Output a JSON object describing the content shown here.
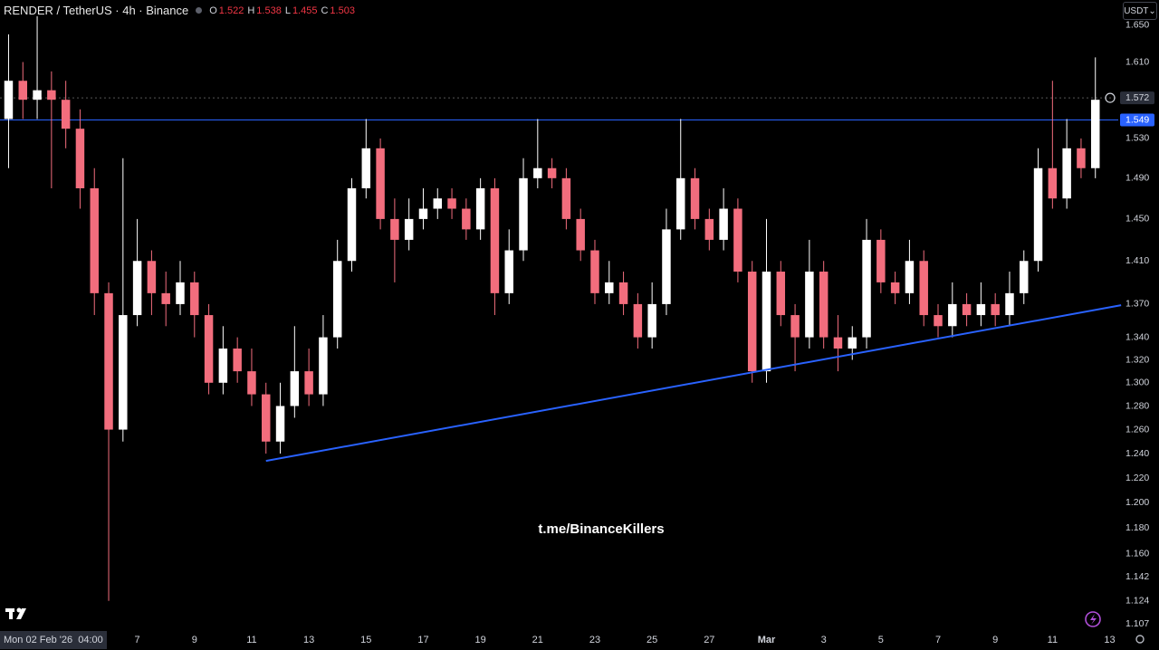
{
  "chart_data": {
    "type": "candlestick",
    "title": "RENDER / TetherUS · 4h · Binance",
    "ohlc_header": [
      {
        "label": "O",
        "value": 1.522
      },
      {
        "label": "H",
        "value": 1.538
      },
      {
        "label": "L",
        "value": 1.455
      },
      {
        "label": "C",
        "value": 1.503
      }
    ],
    "currency": "USDT",
    "start_label": "Mon 02 Feb '26  04:00",
    "watermark": "t.me/BinanceKillers",
    "log_scale": true,
    "up_color": "#ffffff",
    "down_color": "#f26d7d",
    "line_color": "#2962ff",
    "current_price": 1.572,
    "level": 1.549,
    "trendline": {
      "x": [
        11.5,
        41.4
      ],
      "y": [
        1.234,
        1.369
      ]
    },
    "x": [
      2.5,
      3,
      3.5,
      4,
      4.5,
      5,
      5.5,
      6,
      6.5,
      7,
      7.5,
      8,
      8.5,
      9,
      9.5,
      10,
      10.5,
      11,
      11.5,
      12,
      12.5,
      13,
      13.5,
      14,
      14.5,
      15,
      15.5,
      16,
      16.5,
      17,
      17.5,
      18,
      18.5,
      19,
      19.5,
      20,
      20.5,
      21,
      21.5,
      22,
      22.5,
      23,
      23.5,
      24,
      24.5,
      25,
      25.5,
      26,
      26.5,
      27,
      27.5,
      28,
      28.5,
      29,
      29.5,
      30,
      30.5,
      31,
      31.5,
      32,
      32.5,
      33,
      33.5,
      34,
      34.5,
      35,
      35.5,
      36,
      36.5,
      37,
      37.5,
      38,
      38.5,
      39,
      39.5,
      40,
      40.5
    ],
    "open": [
      1.55,
      1.59,
      1.57,
      1.58,
      1.57,
      1.54,
      1.48,
      1.38,
      1.26,
      1.36,
      1.41,
      1.38,
      1.37,
      1.39,
      1.36,
      1.3,
      1.33,
      1.31,
      1.29,
      1.25,
      1.28,
      1.31,
      1.29,
      1.34,
      1.41,
      1.48,
      1.52,
      1.45,
      1.43,
      1.45,
      1.46,
      1.47,
      1.46,
      1.44,
      1.48,
      1.38,
      1.42,
      1.49,
      1.5,
      1.49,
      1.45,
      1.42,
      1.38,
      1.39,
      1.37,
      1.34,
      1.37,
      1.44,
      1.49,
      1.45,
      1.43,
      1.46,
      1.4,
      1.31,
      1.4,
      1.36,
      1.34,
      1.4,
      1.34,
      1.33,
      1.34,
      1.43,
      1.39,
      1.38,
      1.41,
      1.36,
      1.35,
      1.37,
      1.36,
      1.37,
      1.36,
      1.38,
      1.41,
      1.5,
      1.47,
      1.52,
      1.5
    ],
    "high": [
      1.64,
      1.61,
      1.66,
      1.6,
      1.59,
      1.56,
      1.5,
      1.39,
      1.51,
      1.45,
      1.42,
      1.4,
      1.41,
      1.4,
      1.37,
      1.35,
      1.34,
      1.33,
      1.3,
      1.3,
      1.35,
      1.33,
      1.36,
      1.43,
      1.49,
      1.55,
      1.53,
      1.47,
      1.47,
      1.48,
      1.48,
      1.48,
      1.47,
      1.49,
      1.49,
      1.44,
      1.51,
      1.55,
      1.51,
      1.5,
      1.46,
      1.43,
      1.41,
      1.4,
      1.38,
      1.39,
      1.46,
      1.55,
      1.5,
      1.46,
      1.48,
      1.47,
      1.41,
      1.45,
      1.41,
      1.37,
      1.43,
      1.41,
      1.36,
      1.35,
      1.45,
      1.44,
      1.4,
      1.43,
      1.42,
      1.37,
      1.39,
      1.38,
      1.39,
      1.38,
      1.4,
      1.42,
      1.52,
      1.59,
      1.55,
      1.53,
      1.615
    ],
    "low": [
      1.5,
      1.55,
      1.55,
      1.48,
      1.52,
      1.46,
      1.36,
      1.124,
      1.25,
      1.35,
      1.36,
      1.35,
      1.36,
      1.34,
      1.29,
      1.29,
      1.3,
      1.28,
      1.24,
      1.24,
      1.27,
      1.28,
      1.28,
      1.33,
      1.4,
      1.47,
      1.44,
      1.39,
      1.42,
      1.44,
      1.45,
      1.45,
      1.43,
      1.43,
      1.36,
      1.37,
      1.41,
      1.48,
      1.48,
      1.44,
      1.41,
      1.37,
      1.37,
      1.36,
      1.33,
      1.33,
      1.36,
      1.43,
      1.44,
      1.42,
      1.42,
      1.39,
      1.3,
      1.3,
      1.35,
      1.31,
      1.33,
      1.33,
      1.31,
      1.32,
      1.33,
      1.38,
      1.37,
      1.37,
      1.35,
      1.34,
      1.34,
      1.35,
      1.35,
      1.35,
      1.35,
      1.37,
      1.4,
      1.46,
      1.46,
      1.49,
      1.49
    ],
    "close": [
      1.59,
      1.57,
      1.58,
      1.57,
      1.54,
      1.48,
      1.38,
      1.26,
      1.36,
      1.41,
      1.38,
      1.37,
      1.39,
      1.36,
      1.3,
      1.33,
      1.31,
      1.29,
      1.25,
      1.28,
      1.31,
      1.29,
      1.34,
      1.41,
      1.48,
      1.52,
      1.45,
      1.43,
      1.45,
      1.46,
      1.47,
      1.46,
      1.44,
      1.48,
      1.38,
      1.42,
      1.49,
      1.5,
      1.49,
      1.45,
      1.42,
      1.38,
      1.39,
      1.37,
      1.34,
      1.37,
      1.44,
      1.49,
      1.45,
      1.43,
      1.46,
      1.4,
      1.31,
      1.4,
      1.36,
      1.34,
      1.4,
      1.34,
      1.33,
      1.34,
      1.43,
      1.39,
      1.38,
      1.41,
      1.36,
      1.35,
      1.37,
      1.36,
      1.37,
      1.36,
      1.38,
      1.41,
      1.5,
      1.47,
      1.52,
      1.5,
      1.57
    ],
    "xlim": [
      2.2,
      41.3
    ],
    "xticks": [
      7,
      9,
      11,
      13,
      15,
      17,
      19,
      21,
      23,
      25,
      27,
      {
        "value": 29,
        "label": "Mar"
      },
      {
        "value": 31,
        "label": "3"
      },
      {
        "value": 33,
        "label": "5"
      },
      {
        "value": 35,
        "label": "7"
      },
      {
        "value": 37,
        "label": "9"
      },
      {
        "value": 39,
        "label": "11"
      },
      {
        "value": 41,
        "label": "13"
      }
    ],
    "ylim": [
      1.103,
      1.678
    ],
    "yticks": [
      {
        "value": 1.65,
        "label": "1.650"
      },
      {
        "value": 1.61,
        "label": "1.610"
      },
      {
        "value": 1.53,
        "label": "1.530"
      },
      {
        "value": 1.49,
        "label": "1.490"
      },
      {
        "value": 1.45,
        "label": "1.450"
      },
      {
        "value": 1.41,
        "label": "1.410"
      },
      {
        "value": 1.37,
        "label": "1.370"
      },
      {
        "value": 1.34,
        "label": "1.340"
      },
      {
        "value": 1.32,
        "label": "1.320"
      },
      {
        "value": 1.3,
        "label": "1.300"
      },
      {
        "value": 1.28,
        "label": "1.280"
      },
      {
        "value": 1.26,
        "label": "1.260"
      },
      {
        "value": 1.24,
        "label": "1.240"
      },
      {
        "value": 1.22,
        "label": "1.220"
      },
      {
        "value": 1.2,
        "label": "1.200"
      },
      {
        "value": 1.18,
        "label": "1.180"
      },
      {
        "value": 1.16,
        "label": "1.160"
      },
      {
        "value": 1.142,
        "label": "1.142"
      },
      {
        "value": 1.124,
        "label": "1.124"
      },
      {
        "value": 1.107,
        "label": "1.107"
      }
    ]
  }
}
